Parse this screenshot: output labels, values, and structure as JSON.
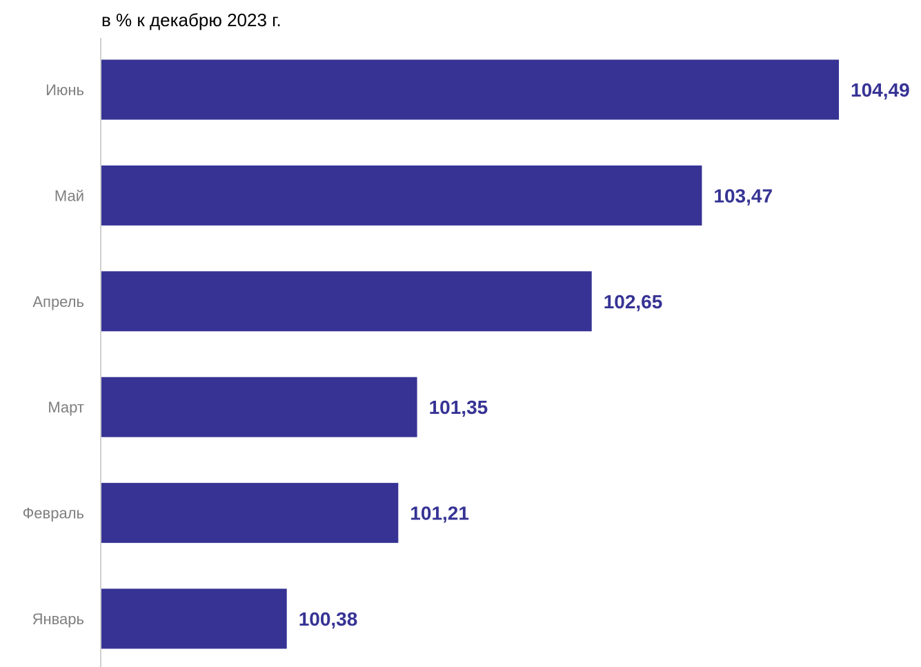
{
  "chart_data": {
    "type": "bar",
    "orientation": "horizontal",
    "subtitle": "в % к декабрю 2023 г.",
    "categories": [
      "Июнь",
      "Май",
      "Апрель",
      "Март",
      "Февраль",
      "Январь"
    ],
    "values": [
      104.49,
      103.47,
      102.65,
      101.35,
      101.21,
      100.38
    ],
    "value_labels": [
      "104,49",
      "103,47",
      "102,65",
      "101,35",
      "101,21",
      "100,38"
    ],
    "xlim": [
      99.0,
      104.49
    ],
    "grid": false,
    "legend": "none",
    "colors": {
      "bar": "#363394",
      "value_label": "#363394",
      "category_label": "#7f7f7f",
      "axis": "#bfbfbf"
    }
  }
}
